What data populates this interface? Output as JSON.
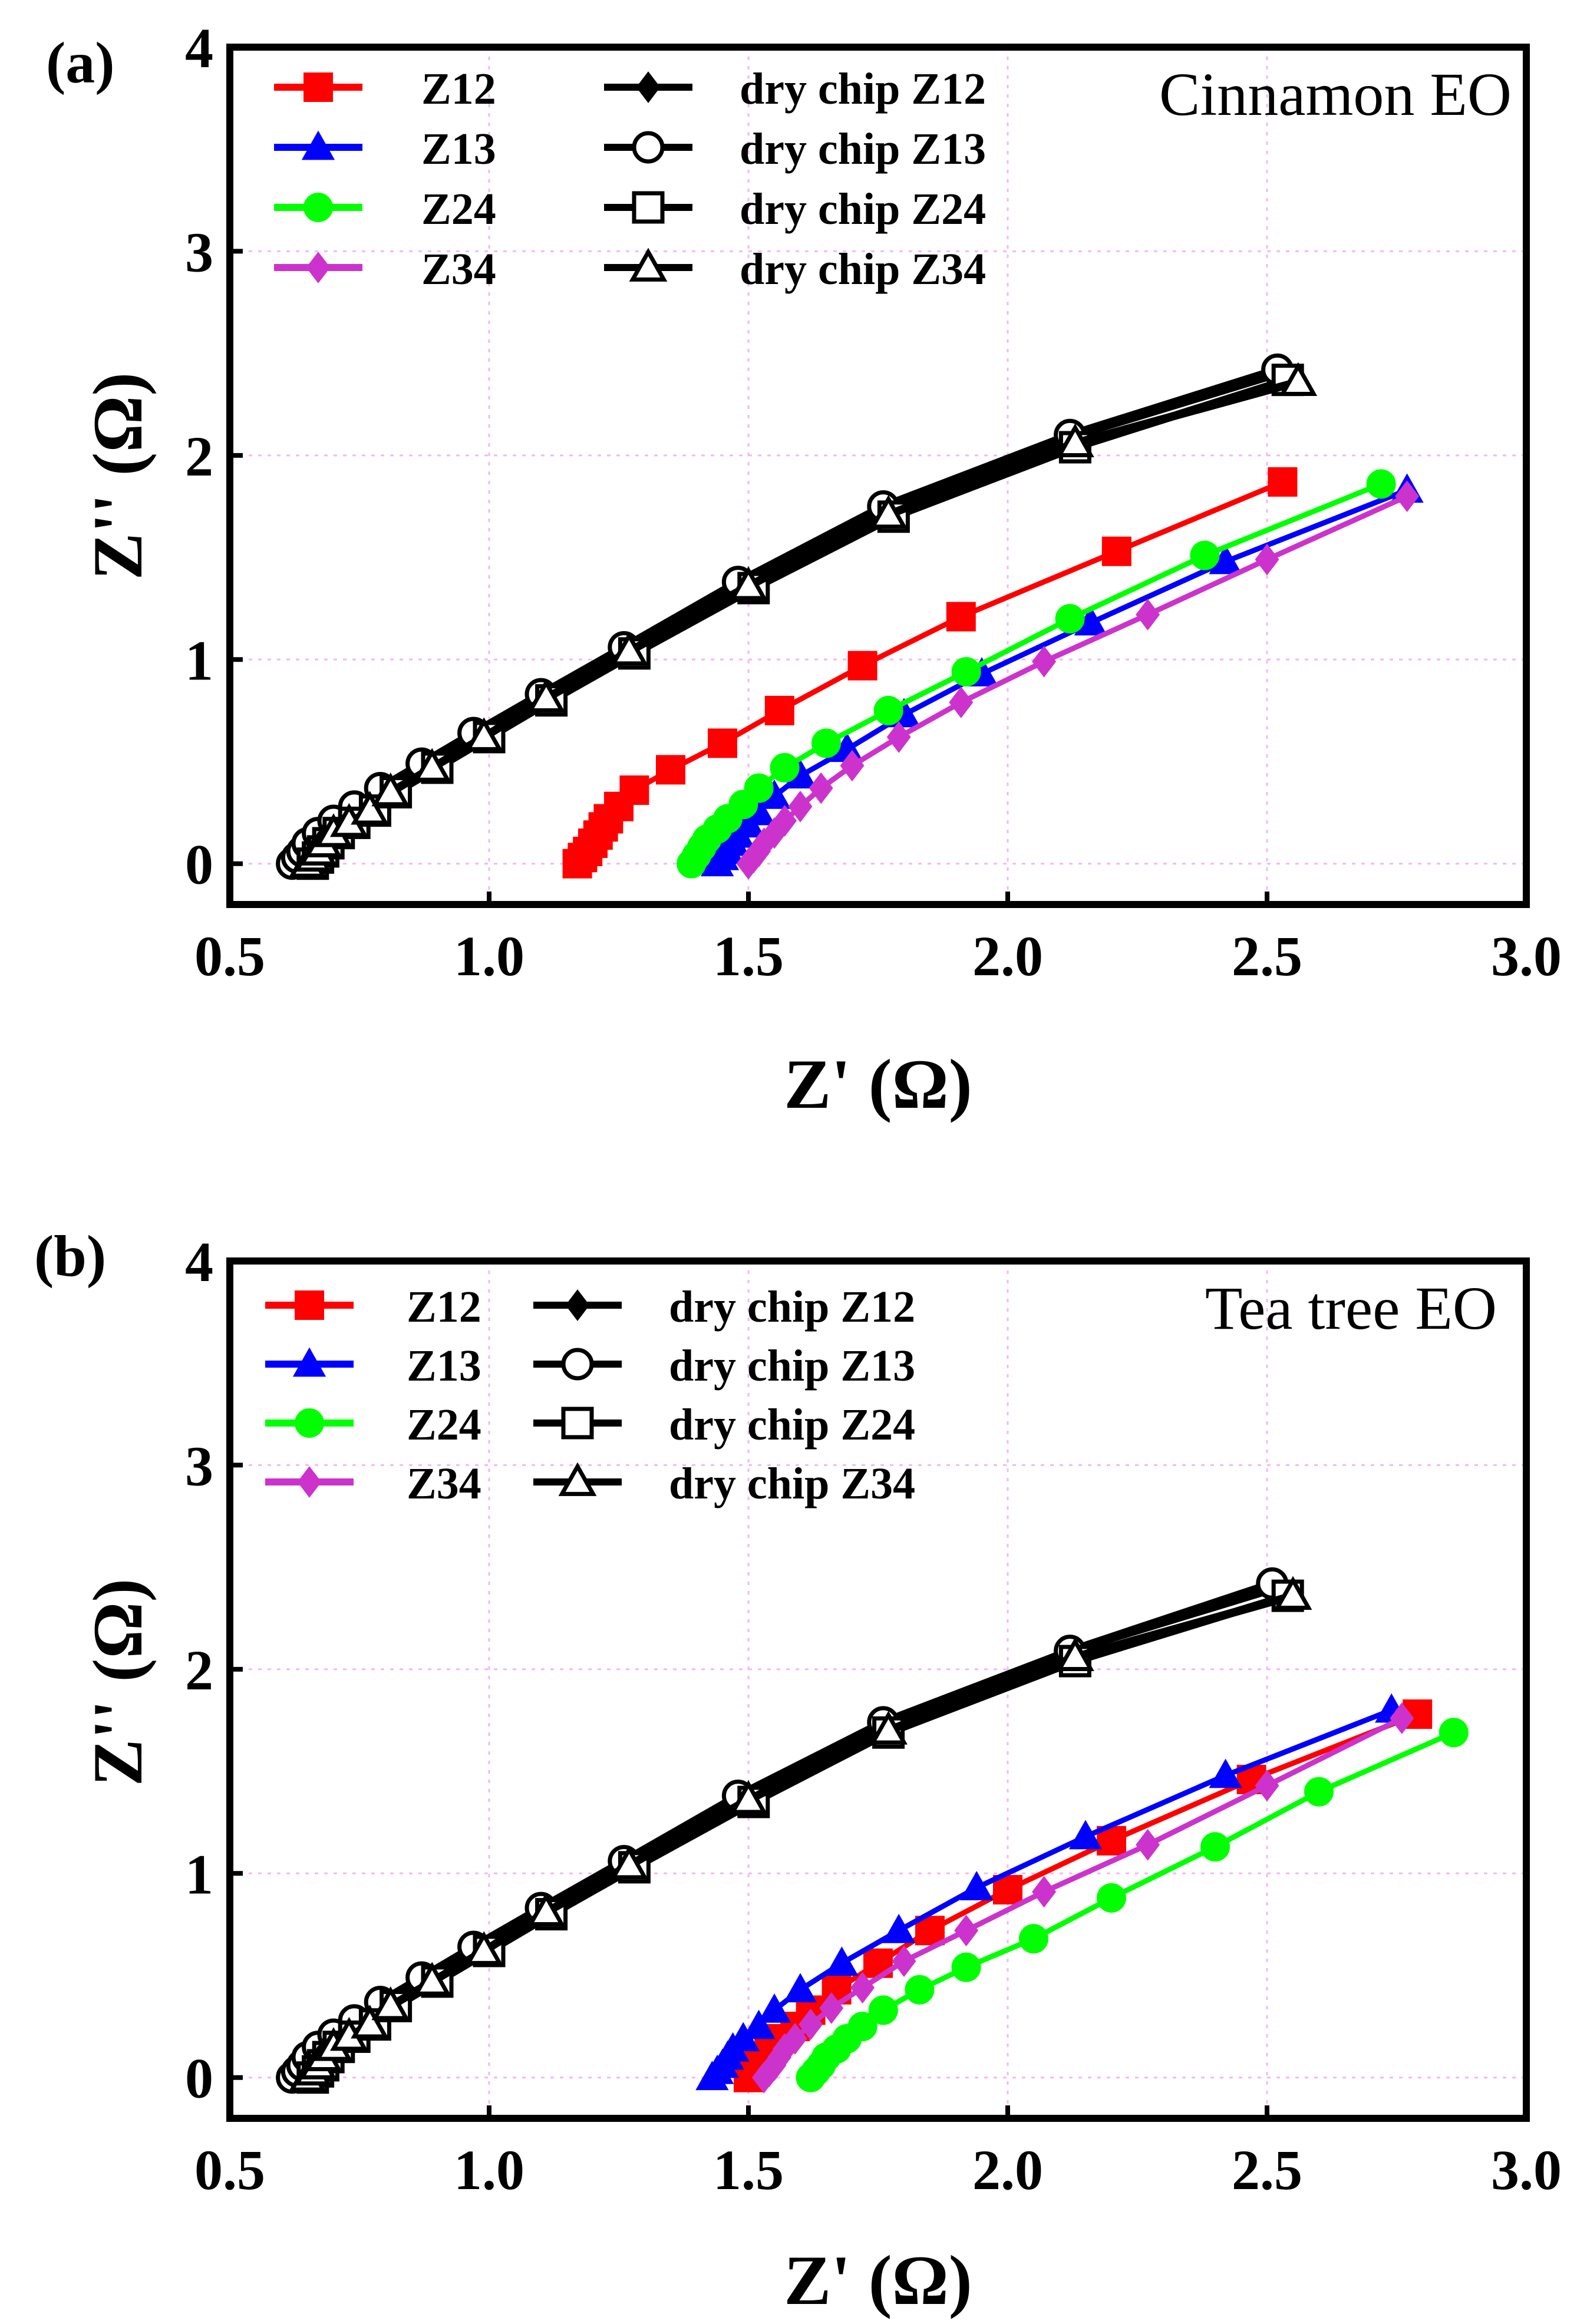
{
  "chart_data": [
    {
      "panel_label": "(a)",
      "type": "line",
      "title": "Cinnamon  EO",
      "xlabel": "Z' (Ω)",
      "ylabel": "Z'' (Ω)",
      "xlim": [
        0.5,
        3.0
      ],
      "ylim": [
        -0.2,
        4.0
      ],
      "xticks": [
        0.5,
        1.0,
        1.5,
        2.0,
        2.5,
        3.0
      ],
      "yticks": [
        0,
        1,
        2,
        3,
        4
      ],
      "xtick_labels": [
        "0.5",
        "1.0",
        "1.5",
        "2.0",
        "2.5",
        "3.0"
      ],
      "ytick_labels": [
        "0",
        "1",
        "2",
        "3",
        "4"
      ],
      "grid": true,
      "legend_position": "top-left",
      "series": [
        {
          "name": "Z12",
          "color": "#ff0000",
          "marker": "square-filled",
          "x": [
            1.17,
            1.18,
            1.19,
            1.2,
            1.21,
            1.22,
            1.23,
            1.25,
            1.28,
            1.35,
            1.45,
            1.56,
            1.72,
            1.91,
            2.21,
            2.53
          ],
          "y": [
            0.0,
            0.03,
            0.06,
            0.1,
            0.14,
            0.18,
            0.22,
            0.28,
            0.36,
            0.46,
            0.59,
            0.75,
            0.97,
            1.21,
            1.53,
            1.87
          ]
        },
        {
          "name": "Z13",
          "color": "#0000ff",
          "marker": "triangle-filled",
          "x": [
            1.44,
            1.45,
            1.46,
            1.47,
            1.48,
            1.5,
            1.52,
            1.55,
            1.6,
            1.69,
            1.8,
            1.95,
            2.16,
            2.42,
            2.77
          ],
          "y": [
            0.0,
            0.03,
            0.06,
            0.1,
            0.14,
            0.19,
            0.25,
            0.33,
            0.43,
            0.56,
            0.73,
            0.93,
            1.18,
            1.48,
            1.83
          ]
        },
        {
          "name": "Z24",
          "color": "#00ff00",
          "marker": "circle-filled",
          "x": [
            1.39,
            1.4,
            1.41,
            1.42,
            1.44,
            1.46,
            1.49,
            1.52,
            1.57,
            1.65,
            1.77,
            1.92,
            2.12,
            2.38,
            2.72
          ],
          "y": [
            0.0,
            0.04,
            0.08,
            0.12,
            0.17,
            0.22,
            0.29,
            0.37,
            0.47,
            0.59,
            0.75,
            0.94,
            1.2,
            1.51,
            1.86
          ]
        },
        {
          "name": "Z34",
          "color": "#cc33cc",
          "marker": "diamond-filled",
          "x": [
            1.5,
            1.51,
            1.52,
            1.53,
            1.55,
            1.57,
            1.6,
            1.64,
            1.7,
            1.79,
            1.91,
            2.07,
            2.27,
            2.5,
            2.77
          ],
          "y": [
            0.0,
            0.03,
            0.06,
            0.1,
            0.15,
            0.21,
            0.28,
            0.37,
            0.48,
            0.62,
            0.79,
            0.99,
            1.22,
            1.49,
            1.8
          ]
        },
        {
          "name": "dry chip Z12",
          "color": "#000000",
          "marker": "diamond-filled",
          "x": [
            0.62,
            0.63,
            0.64,
            0.65,
            0.67,
            0.7,
            0.74,
            0.79,
            0.87,
            0.97,
            1.1,
            1.26,
            1.48,
            1.76,
            2.12,
            2.52
          ],
          "y": [
            0.0,
            0.03,
            0.06,
            0.1,
            0.15,
            0.2,
            0.27,
            0.36,
            0.48,
            0.63,
            0.82,
            1.05,
            1.37,
            1.73,
            2.09,
            2.4
          ]
        },
        {
          "name": "dry chip Z13",
          "color": "#000000",
          "marker": "circle-open",
          "x": [
            0.62,
            0.63,
            0.64,
            0.65,
            0.67,
            0.7,
            0.74,
            0.79,
            0.87,
            0.97,
            1.1,
            1.26,
            1.48,
            1.76,
            2.12,
            2.52
          ],
          "y": [
            0.0,
            0.03,
            0.06,
            0.1,
            0.15,
            0.21,
            0.28,
            0.37,
            0.49,
            0.64,
            0.83,
            1.06,
            1.38,
            1.75,
            2.1,
            2.42
          ]
        },
        {
          "name": "dry chip Z24",
          "color": "#000000",
          "marker": "square-open",
          "x": [
            0.66,
            0.67,
            0.68,
            0.69,
            0.71,
            0.74,
            0.78,
            0.82,
            0.9,
            1.0,
            1.12,
            1.28,
            1.51,
            1.78,
            2.13,
            2.54
          ],
          "y": [
            0.0,
            0.03,
            0.06,
            0.1,
            0.15,
            0.2,
            0.26,
            0.35,
            0.47,
            0.62,
            0.8,
            1.03,
            1.35,
            1.7,
            2.04,
            2.37
          ]
        },
        {
          "name": "dry chip Z34",
          "color": "#000000",
          "marker": "triangle-open",
          "x": [
            0.65,
            0.66,
            0.67,
            0.68,
            0.7,
            0.73,
            0.77,
            0.81,
            0.89,
            0.99,
            1.11,
            1.27,
            1.5,
            1.77,
            2.13,
            2.56
          ],
          "y": [
            0.0,
            0.03,
            0.06,
            0.1,
            0.15,
            0.2,
            0.26,
            0.35,
            0.47,
            0.62,
            0.81,
            1.04,
            1.36,
            1.71,
            2.06,
            2.36
          ]
        }
      ]
    },
    {
      "panel_label": "(b)",
      "type": "line",
      "title": "Tea tree EO",
      "xlabel": "Z' (Ω)",
      "ylabel": "Z''  (Ω)",
      "xlim": [
        0.5,
        3.0
      ],
      "ylim": [
        -0.2,
        4.0
      ],
      "xticks": [
        0.5,
        1.0,
        1.5,
        2.0,
        2.5,
        3.0
      ],
      "yticks": [
        0,
        1,
        2,
        3,
        4
      ],
      "xtick_labels": [
        "0.5",
        "1.0",
        "1.5",
        "2.0",
        "2.5",
        "3.0"
      ],
      "ytick_labels": [
        "0",
        "1",
        "2",
        "3",
        "4"
      ],
      "grid": true,
      "legend_position": "top-left",
      "series": [
        {
          "name": "Z12",
          "color": "#ff0000",
          "marker": "square-filled",
          "x": [
            1.5,
            1.51,
            1.52,
            1.53,
            1.54,
            1.56,
            1.59,
            1.62,
            1.67,
            1.75,
            1.85,
            2.0,
            2.2,
            2.47,
            2.79
          ],
          "y": [
            0.0,
            0.03,
            0.06,
            0.1,
            0.14,
            0.19,
            0.25,
            0.33,
            0.43,
            0.56,
            0.72,
            0.92,
            1.16,
            1.46,
            1.78
          ]
        },
        {
          "name": "Z13",
          "color": "#0000ff",
          "marker": "triangle-filled",
          "x": [
            1.43,
            1.44,
            1.45,
            1.46,
            1.47,
            1.49,
            1.52,
            1.55,
            1.6,
            1.68,
            1.79,
            1.94,
            2.15,
            2.42,
            2.74
          ],
          "y": [
            0.0,
            0.03,
            0.06,
            0.1,
            0.14,
            0.19,
            0.25,
            0.33,
            0.43,
            0.56,
            0.72,
            0.93,
            1.18,
            1.48,
            1.8
          ]
        },
        {
          "name": "Z24",
          "color": "#00ff00",
          "marker": "circle-filled",
          "x": [
            1.62,
            1.63,
            1.64,
            1.65,
            1.67,
            1.69,
            1.72,
            1.76,
            1.83,
            1.92,
            2.05,
            2.2,
            2.4,
            2.6,
            2.86
          ],
          "y": [
            0.0,
            0.03,
            0.06,
            0.1,
            0.14,
            0.19,
            0.25,
            0.33,
            0.43,
            0.54,
            0.68,
            0.88,
            1.13,
            1.4,
            1.69
          ]
        },
        {
          "name": "Z34",
          "color": "#cc33cc",
          "marker": "diamond-filled",
          "x": [
            1.53,
            1.54,
            1.55,
            1.56,
            1.57,
            1.59,
            1.62,
            1.66,
            1.72,
            1.8,
            1.92,
            2.07,
            2.27,
            2.5,
            2.76
          ],
          "y": [
            0.0,
            0.03,
            0.06,
            0.1,
            0.14,
            0.19,
            0.26,
            0.34,
            0.44,
            0.57,
            0.72,
            0.91,
            1.14,
            1.43,
            1.76
          ]
        },
        {
          "name": "dry chip Z12",
          "color": "#000000",
          "marker": "diamond-filled",
          "x": [
            0.62,
            0.63,
            0.64,
            0.65,
            0.67,
            0.7,
            0.74,
            0.79,
            0.87,
            0.97,
            1.1,
            1.26,
            1.48,
            1.76,
            2.12,
            2.52
          ],
          "y": [
            0.0,
            0.03,
            0.06,
            0.1,
            0.15,
            0.2,
            0.27,
            0.36,
            0.48,
            0.63,
            0.82,
            1.05,
            1.37,
            1.73,
            2.09,
            2.4
          ]
        },
        {
          "name": "dry chip Z13",
          "color": "#000000",
          "marker": "circle-open",
          "x": [
            0.62,
            0.63,
            0.64,
            0.65,
            0.67,
            0.7,
            0.74,
            0.79,
            0.87,
            0.97,
            1.1,
            1.26,
            1.48,
            1.76,
            2.12,
            2.51
          ],
          "y": [
            0.0,
            0.03,
            0.06,
            0.1,
            0.15,
            0.21,
            0.28,
            0.37,
            0.49,
            0.64,
            0.83,
            1.06,
            1.38,
            1.74,
            2.09,
            2.42
          ]
        },
        {
          "name": "dry chip Z24",
          "color": "#000000",
          "marker": "square-open",
          "x": [
            0.66,
            0.67,
            0.68,
            0.69,
            0.71,
            0.74,
            0.78,
            0.82,
            0.9,
            1.0,
            1.12,
            1.28,
            1.51,
            1.77,
            2.13,
            2.54
          ],
          "y": [
            0.0,
            0.03,
            0.06,
            0.1,
            0.15,
            0.2,
            0.26,
            0.35,
            0.47,
            0.62,
            0.8,
            1.03,
            1.35,
            1.69,
            2.04,
            2.36
          ]
        },
        {
          "name": "dry chip Z34",
          "color": "#000000",
          "marker": "triangle-open",
          "x": [
            0.65,
            0.66,
            0.67,
            0.68,
            0.7,
            0.73,
            0.77,
            0.81,
            0.89,
            0.99,
            1.11,
            1.27,
            1.5,
            1.77,
            2.13,
            2.55
          ],
          "y": [
            0.0,
            0.03,
            0.06,
            0.1,
            0.15,
            0.2,
            0.26,
            0.35,
            0.47,
            0.62,
            0.81,
            1.04,
            1.36,
            1.7,
            2.06,
            2.36
          ]
        }
      ]
    }
  ]
}
